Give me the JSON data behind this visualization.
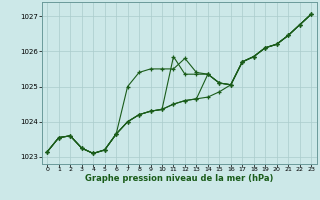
{
  "background_color": "#cce8e8",
  "grid_color": "#aacccc",
  "line_color": "#1a5c1a",
  "xlabel": "Graphe pression niveau de la mer (hPa)",
  "ylim": [
    1022.8,
    1027.4
  ],
  "xlim": [
    -0.5,
    23.5
  ],
  "yticks": [
    1023,
    1024,
    1025,
    1026,
    1027
  ],
  "xticks": [
    0,
    1,
    2,
    3,
    4,
    5,
    6,
    7,
    8,
    9,
    10,
    11,
    12,
    13,
    14,
    15,
    16,
    17,
    18,
    19,
    20,
    21,
    22,
    23
  ],
  "series": [
    [
      1023.15,
      1023.55,
      1023.6,
      1023.25,
      1023.1,
      1023.2,
      1023.65,
      1025.0,
      1025.4,
      1025.5,
      1025.5,
      1025.5,
      1025.8,
      1025.4,
      1025.35,
      1025.1,
      1025.05,
      1025.7,
      1025.85,
      1026.1,
      1026.2,
      1026.45,
      1026.75,
      1027.05
    ],
    [
      1023.15,
      1023.55,
      1023.6,
      1023.25,
      1023.1,
      1023.2,
      1023.65,
      1024.0,
      1024.2,
      1024.3,
      1024.35,
      1025.85,
      1025.35,
      1025.35,
      1025.35,
      1025.1,
      1025.05,
      1025.7,
      1025.85,
      1026.1,
      1026.2,
      1026.45,
      1026.75,
      1027.05
    ],
    [
      1023.15,
      1023.55,
      1023.6,
      1023.25,
      1023.1,
      1023.2,
      1023.65,
      1024.0,
      1024.2,
      1024.3,
      1024.35,
      1024.5,
      1024.6,
      1024.65,
      1025.35,
      1025.1,
      1025.05,
      1025.7,
      1025.85,
      1026.1,
      1026.2,
      1026.45,
      1026.75,
      1027.05
    ],
    [
      1023.15,
      1023.55,
      1023.6,
      1023.25,
      1023.1,
      1023.2,
      1023.65,
      1024.0,
      1024.2,
      1024.3,
      1024.35,
      1024.5,
      1024.6,
      1024.65,
      1024.7,
      1024.85,
      1025.05,
      1025.7,
      1025.85,
      1026.1,
      1026.2,
      1026.45,
      1026.75,
      1027.05
    ]
  ]
}
